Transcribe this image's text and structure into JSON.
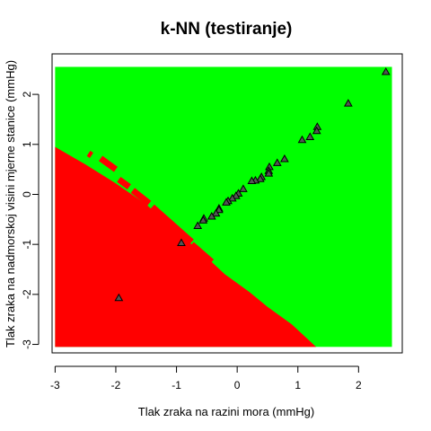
{
  "chart_data": {
    "type": "scatter",
    "title": "k-NN (testiranje)",
    "xlabel": "Tlak zraka na razini mora (mmHg)",
    "ylabel": "Tlak zraka na nadmorskoj visini mjerne stanice (mmHg)",
    "xlim": [
      -3.05,
      2.72
    ],
    "ylim": [
      -3.17,
      2.81
    ],
    "grid": false,
    "xticks": [
      -3,
      -2,
      -1,
      0,
      1,
      2
    ],
    "yticks": [
      -3,
      -2,
      -1,
      0,
      1,
      2
    ],
    "xtick_labels": [
      "-3",
      "-2",
      "-1",
      "0",
      "1",
      "2"
    ],
    "ytick_labels": [
      "-3",
      "-2",
      "-1",
      "0",
      "1",
      "2"
    ],
    "region": {
      "x_range": [
        -3.0,
        2.55
      ],
      "y_range": [
        -3.05,
        2.55
      ],
      "colors": {
        "green": "#00ff00",
        "red": "#ff0000"
      },
      "red_region_boundary": [
        [
          -3.0,
          0.95
        ],
        [
          -2.5,
          0.6
        ],
        [
          -2.0,
          0.22
        ],
        [
          -1.5,
          -0.2
        ],
        [
          -1.0,
          -0.75
        ],
        [
          -0.6,
          -1.15
        ],
        [
          -0.2,
          -1.6
        ],
        [
          0.2,
          -1.95
        ],
        [
          0.5,
          -2.25
        ],
        [
          0.9,
          -2.6
        ],
        [
          1.3,
          -3.05
        ]
      ],
      "red_stripes": [
        [
          [
            -2.45,
            0.82
          ],
          [
            -2.4,
            0.78
          ]
        ],
        [
          [
            -2.25,
            0.72
          ],
          [
            -2.0,
            0.5
          ]
        ],
        [
          [
            -1.95,
            0.3
          ],
          [
            -1.78,
            0.15
          ]
        ],
        [
          [
            -1.72,
            0.08
          ],
          [
            -1.45,
            -0.18
          ]
        ],
        [
          [
            -1.4,
            -0.25
          ],
          [
            -0.75,
            -0.95
          ]
        ],
        [
          [
            -0.75,
            -1.0
          ],
          [
            -0.42,
            -1.35
          ]
        ]
      ]
    },
    "marker": "triangle",
    "marker_color": "#555555",
    "points": [
      [
        2.45,
        2.45
      ],
      [
        1.83,
        1.82
      ],
      [
        1.32,
        1.35
      ],
      [
        1.31,
        1.27
      ],
      [
        1.2,
        1.15
      ],
      [
        1.07,
        1.09
      ],
      [
        0.78,
        0.71
      ],
      [
        0.66,
        0.63
      ],
      [
        0.53,
        0.55
      ],
      [
        0.52,
        0.47
      ],
      [
        0.52,
        0.42
      ],
      [
        0.4,
        0.35
      ],
      [
        0.38,
        0.31
      ],
      [
        0.3,
        0.28
      ],
      [
        0.24,
        0.27
      ],
      [
        0.1,
        0.11
      ],
      [
        0.02,
        0.02
      ],
      [
        -0.02,
        -0.03
      ],
      [
        -0.08,
        -0.08
      ],
      [
        -0.15,
        -0.13
      ],
      [
        -0.18,
        -0.16
      ],
      [
        -0.3,
        -0.28
      ],
      [
        -0.3,
        -0.31
      ],
      [
        -0.35,
        -0.38
      ],
      [
        -0.42,
        -0.44
      ],
      [
        -0.55,
        -0.48
      ],
      [
        -0.56,
        -0.52
      ],
      [
        -0.65,
        -0.63
      ],
      [
        -0.92,
        -0.97
      ],
      [
        -1.95,
        -2.07
      ]
    ]
  }
}
